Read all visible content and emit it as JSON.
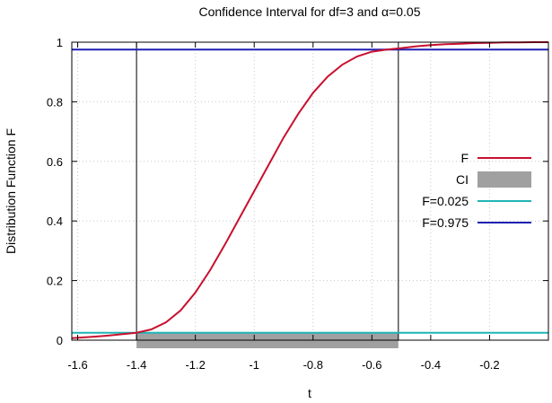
{
  "chart_data": {
    "type": "line",
    "title": "Confidence Interval for df=3 and α=0.05",
    "xlabel": "t",
    "ylabel": "Distribution Function F",
    "xlim": [
      -1.62,
      0.0
    ],
    "ylim": [
      0,
      1
    ],
    "grid": true,
    "legend_position": "right",
    "x_ticks": [
      -1.6,
      -1.4,
      -1.2,
      -1,
      -0.8,
      -0.6,
      -0.4,
      -0.2
    ],
    "x_tick_labels": [
      "-1.6",
      "-1.4",
      "-1.2",
      "-1",
      "-0.8",
      "-0.6",
      "-0.4",
      "-0.2"
    ],
    "y_ticks": [
      0,
      0.2,
      0.4,
      0.6,
      0.8,
      1
    ],
    "y_tick_labels": [
      "0",
      "0.2",
      "0.4",
      "0.6",
      "0.8",
      "1"
    ],
    "ci": {
      "lower": -1.4,
      "upper": -0.51
    },
    "series": [
      {
        "name": "F",
        "color": "#c8102e",
        "x": [
          -1.62,
          -1.55,
          -1.5,
          -1.45,
          -1.4,
          -1.35,
          -1.3,
          -1.25,
          -1.2,
          -1.15,
          -1.1,
          -1.05,
          -1.0,
          -0.95,
          -0.9,
          -0.85,
          -0.8,
          -0.75,
          -0.7,
          -0.65,
          -0.6,
          -0.55,
          -0.5,
          -0.45,
          -0.4,
          -0.35,
          -0.3,
          -0.25,
          -0.2,
          -0.15,
          -0.1,
          -0.05,
          0.0
        ],
        "y": [
          0.007,
          0.011,
          0.015,
          0.02,
          0.025,
          0.036,
          0.06,
          0.1,
          0.16,
          0.235,
          0.32,
          0.41,
          0.5,
          0.59,
          0.68,
          0.76,
          0.83,
          0.885,
          0.925,
          0.952,
          0.968,
          0.975,
          0.98,
          0.986,
          0.99,
          0.993,
          0.995,
          0.997,
          0.998,
          0.999,
          0.999,
          1.0,
          1.0
        ]
      },
      {
        "name": "CI",
        "color": "#a0a0a0"
      },
      {
        "name": "F=0.025",
        "color": "#1fb5b5",
        "value": 0.025
      },
      {
        "name": "F=0.975",
        "color": "#1f1fb4",
        "value": 0.975
      }
    ]
  }
}
